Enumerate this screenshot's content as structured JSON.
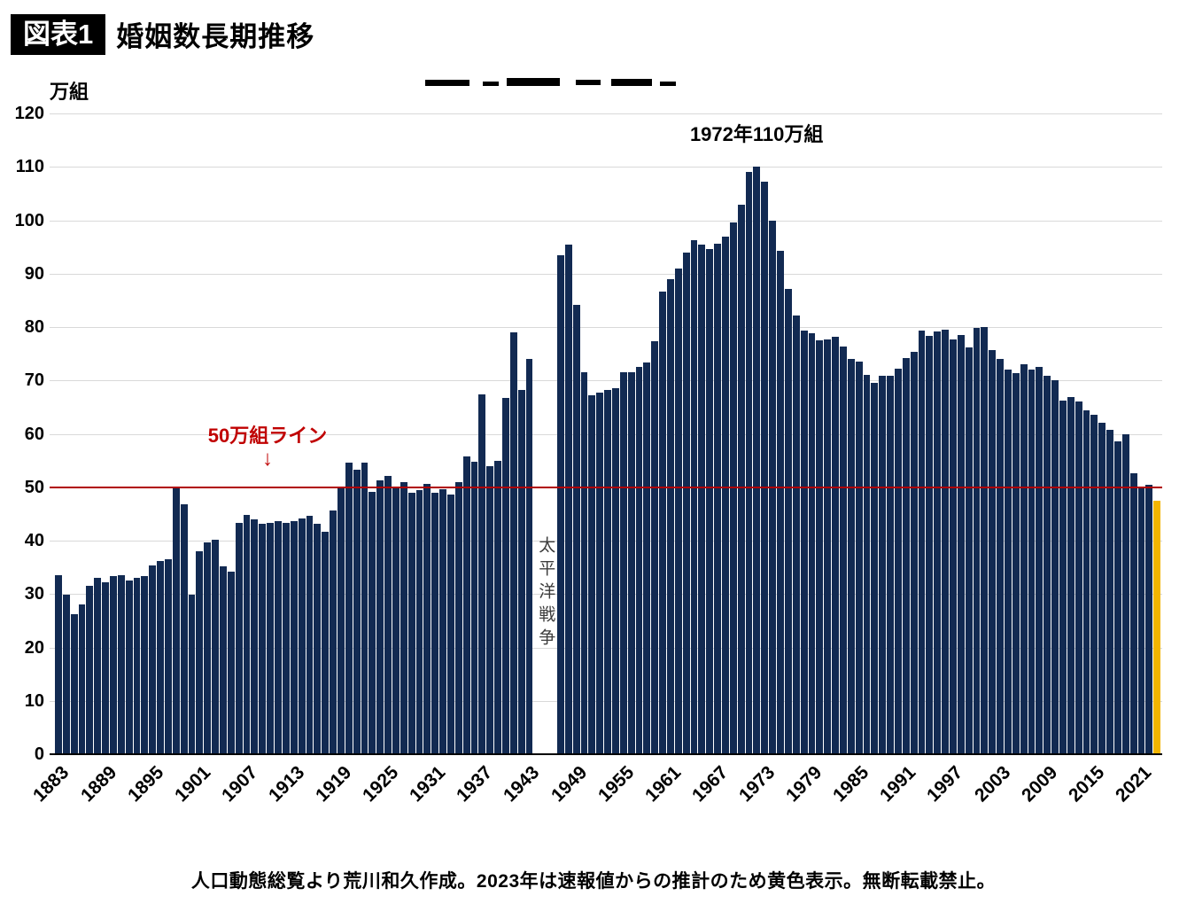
{
  "header": {
    "badge": "図表1",
    "title": "婚姻数長期推移"
  },
  "footer": {
    "caption": "人口動態総覧より荒川和久作成。2023年は速報値からの推計のため黄色表示。無断転載禁止。"
  },
  "chart_data": {
    "type": "bar",
    "title": "婚姻数長期推移",
    "ylabel": "万組",
    "ylim": [
      0,
      120
    ],
    "ytick_step": 10,
    "yticks": [
      0,
      10,
      20,
      30,
      40,
      50,
      60,
      70,
      80,
      90,
      100,
      110,
      120
    ],
    "xticks": [
      1883,
      1889,
      1895,
      1901,
      1907,
      1913,
      1919,
      1925,
      1931,
      1937,
      1943,
      1949,
      1955,
      1961,
      1967,
      1973,
      1979,
      1985,
      1991,
      1997,
      2003,
      2009,
      2015,
      2021
    ],
    "start_year": 1883,
    "end_year": 2023,
    "highlight_year": 2023,
    "peak_year": 1972,
    "reference_line_value": 50,
    "grid": true,
    "legend": false,
    "annotations": {
      "peak_label": "1972年110万組",
      "reference_line_label": "50万組ライン",
      "reference_arrow": "↓",
      "war_gap_label": "太平洋戦争"
    },
    "colors": {
      "bar": "#122a52",
      "highlight": "#f3b500",
      "reference_line": "#b00000",
      "reference_text": "#c00000",
      "grid": "#d9d9d9",
      "axis": "#000000"
    },
    "years": "1883-2023 (1944-1946 missing due to war)",
    "values": [
      33.6,
      29.8,
      26.2,
      28.0,
      31.6,
      33.0,
      32.2,
      33.4,
      33.6,
      32.6,
      33.0,
      33.4,
      35.4,
      36.2,
      36.6,
      50.2,
      46.8,
      29.8,
      38.0,
      39.6,
      40.2,
      35.2,
      34.2,
      43.4,
      44.8,
      44.0,
      43.2,
      43.4,
      43.6,
      43.4,
      43.6,
      44.2,
      44.6,
      43.2,
      41.6,
      45.6,
      49.8,
      54.6,
      53.2,
      54.6,
      49.1,
      51.3,
      52.1,
      50.2,
      51.0,
      49.0,
      49.4,
      50.7,
      48.9,
      49.7,
      48.6,
      50.9,
      55.7,
      54.7,
      67.4,
      53.9,
      55.0,
      66.7,
      79.0,
      68.2,
      74.0,
      null,
      null,
      null,
      93.4,
      95.4,
      84.2,
      71.5,
      67.2,
      67.7,
      68.2,
      68.5,
      71.5,
      71.5,
      72.6,
      73.3,
      77.3,
      86.6,
      88.9,
      91.0,
      94.0,
      96.2,
      95.4,
      94.6,
      95.6,
      96.9,
      99.6,
      102.9,
      109.1,
      110.0,
      107.2,
      100.0,
      94.2,
      87.2,
      82.1,
      79.3,
      78.9,
      77.5,
      77.7,
      78.1,
      76.3,
      74.0,
      73.6,
      71.1,
      69.6,
      70.8,
      70.8,
      72.2,
      74.2,
      75.4,
      79.3,
      78.3,
      79.2,
      79.5,
      77.6,
      78.5,
      76.2,
      79.8,
      80.0,
      75.7,
      74.0,
      72.0,
      71.4,
      73.1,
      72.0,
      72.6,
      70.8,
      70.0,
      66.2,
      66.9,
      66.1,
      64.4,
      63.5,
      62.1,
      60.7,
      58.6,
      59.9,
      52.6,
      50.1,
      50.5,
      47.5
    ]
  }
}
